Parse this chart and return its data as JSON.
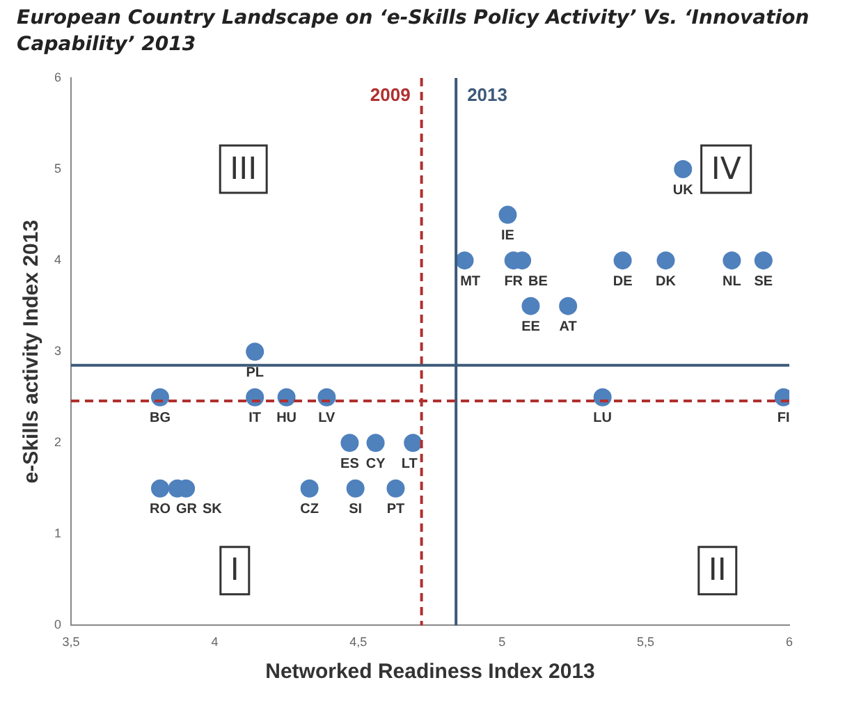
{
  "chart_data": {
    "type": "scatter",
    "title": "European Country Landscape on ‘e-Skills Policy Activity’ Vs. ‘Innovation Capability’ 2013",
    "xlabel": "Networked Readiness Index 2013",
    "ylabel": "e-Skills activity Index 2013",
    "x": [
      3.81,
      4.14,
      4.14,
      4.25,
      4.39,
      4.47,
      4.56,
      4.69,
      3.81,
      3.87,
      3.9,
      4.33,
      4.49,
      4.63,
      4.87,
      5.02,
      5.04,
      5.07,
      5.1,
      5.23,
      5.42,
      5.57,
      5.8,
      5.91,
      5.63,
      5.35,
      5.98
    ],
    "series": [
      {
        "color": "#4f81bd",
        "values": [
          2.5,
          3,
          2.5,
          2.5,
          2.5,
          2,
          2,
          2,
          1.5,
          1.5,
          1.5,
          1.5,
          1.5,
          1.5,
          4,
          4.5,
          4,
          4,
          3.5,
          3.5,
          4,
          4,
          4,
          4,
          5,
          2.5,
          2.5
        ],
        "value_labels": [
          "BG",
          "PL",
          "IT",
          "HU",
          "LV",
          "ES",
          "CY",
          "LT",
          "RO",
          "GR",
          "SK",
          "CZ",
          "SI",
          "PT",
          "MT",
          "IE",
          "FR",
          "BE",
          "EE",
          "AT",
          "DE",
          "DK",
          "NL",
          "SE",
          "UK",
          "LU",
          "FI"
        ]
      }
    ],
    "xlim": [
      3.5,
      6
    ],
    "xticks": [
      {
        "value": 3.5,
        "label": "3,5"
      },
      4,
      {
        "value": 4.5,
        "label": "4,5"
      },
      5,
      {
        "value": 5.5,
        "label": "5,5"
      },
      6
    ],
    "ylim": [
      0,
      6
    ],
    "yticks": [
      0,
      1,
      2,
      3,
      4,
      5,
      6
    ],
    "grid": false,
    "legend": false,
    "marker": "circle",
    "ref_lines": [
      {
        "axis": "x",
        "value": 4.72,
        "color": "#b03030",
        "line_style": "dashed"
      },
      {
        "axis": "x",
        "value": 4.84,
        "color": "#3d5a7a",
        "line_style": "solid"
      },
      {
        "axis": "y",
        "value": 2.46,
        "color": "#b03030",
        "line_style": "dashed"
      },
      {
        "axis": "y",
        "value": 2.85,
        "color": "#3d5a7a",
        "line_style": "solid"
      }
    ],
    "annotations": [
      {
        "text": "2009",
        "x": 4.72,
        "y": 5.8
      },
      {
        "text": "2013",
        "x": 4.84,
        "y": 5.8
      },
      {
        "text": "I",
        "x": 4.07,
        "y": 0.6
      },
      {
        "text": "II",
        "x": 5.75,
        "y": 0.6
      },
      {
        "text": "III",
        "x": 4.1,
        "y": 5.0
      },
      {
        "text": "IV",
        "x": 5.78,
        "y": 5.0
      }
    ]
  }
}
